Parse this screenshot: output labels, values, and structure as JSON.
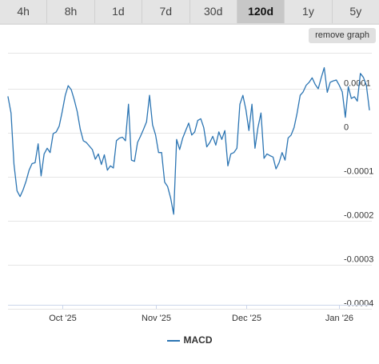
{
  "range_tabs": [
    {
      "label": "4h"
    },
    {
      "label": "8h"
    },
    {
      "label": "1d"
    },
    {
      "label": "7d"
    },
    {
      "label": "30d"
    },
    {
      "label": "120d",
      "active": true
    },
    {
      "label": "1y"
    },
    {
      "label": "5y"
    }
  ],
  "remove_graph_label": "remove graph",
  "chart_data": {
    "type": "line",
    "title": "",
    "xlabel": "",
    "ylabel": "",
    "x_start": "2025-09-13",
    "x_end": "2026-01-11",
    "x_tick_labels": [
      "Oct '25",
      "Nov '25",
      "Dec '25",
      "Jan '26"
    ],
    "x_tick_dates": [
      "2025-10-01",
      "2025-11-01",
      "2025-12-01",
      "2026-01-01"
    ],
    "ylim": [
      -0.0004,
      0.0002
    ],
    "y_ticks": [
      -0.0004,
      -0.0003,
      -0.0002,
      -0.0001,
      0,
      0.0001
    ],
    "y_tick_labels": [
      "-0.0004",
      "-0.0003",
      "-0.0002",
      "-0.0001",
      "0",
      "0.0001"
    ],
    "grid": true,
    "legend": "bottom-center",
    "line_color": "#2c75b3",
    "series": [
      {
        "name": "MACD",
        "x": [
          "2025-09-13",
          "2025-09-14",
          "2025-09-15",
          "2025-09-16",
          "2025-09-17",
          "2025-09-18",
          "2025-09-19",
          "2025-09-20",
          "2025-09-21",
          "2025-09-22",
          "2025-09-23",
          "2025-09-24",
          "2025-09-25",
          "2025-09-26",
          "2025-09-27",
          "2025-09-28",
          "2025-09-29",
          "2025-09-30",
          "2025-10-01",
          "2025-10-02",
          "2025-10-03",
          "2025-10-04",
          "2025-10-05",
          "2025-10-06",
          "2025-10-07",
          "2025-10-08",
          "2025-10-09",
          "2025-10-10",
          "2025-10-11",
          "2025-10-12",
          "2025-10-13",
          "2025-10-14",
          "2025-10-15",
          "2025-10-16",
          "2025-10-17",
          "2025-10-18",
          "2025-10-19",
          "2025-10-20",
          "2025-10-21",
          "2025-10-22",
          "2025-10-23",
          "2025-10-24",
          "2025-10-25",
          "2025-10-26",
          "2025-10-27",
          "2025-10-28",
          "2025-10-29",
          "2025-10-30",
          "2025-10-31",
          "2025-11-01",
          "2025-11-02",
          "2025-11-03",
          "2025-11-04",
          "2025-11-05",
          "2025-11-06",
          "2025-11-07",
          "2025-11-08",
          "2025-11-09",
          "2025-11-10",
          "2025-11-11",
          "2025-11-12",
          "2025-11-13",
          "2025-11-14",
          "2025-11-15",
          "2025-11-16",
          "2025-11-17",
          "2025-11-18",
          "2025-11-19",
          "2025-11-20",
          "2025-11-21",
          "2025-11-22",
          "2025-11-23",
          "2025-11-24",
          "2025-11-25",
          "2025-11-26",
          "2025-11-27",
          "2025-11-28",
          "2025-11-29",
          "2025-11-30",
          "2025-12-01",
          "2025-12-02",
          "2025-12-03",
          "2025-12-04",
          "2025-12-05",
          "2025-12-06",
          "2025-12-07",
          "2025-12-08",
          "2025-12-09",
          "2025-12-10",
          "2025-12-11",
          "2025-12-12",
          "2025-12-13",
          "2025-12-14",
          "2025-12-15",
          "2025-12-16",
          "2025-12-17",
          "2025-12-18",
          "2025-12-19",
          "2025-12-20",
          "2025-12-21",
          "2025-12-22",
          "2025-12-23",
          "2025-12-24",
          "2025-12-25",
          "2025-12-26",
          "2025-12-27",
          "2025-12-28",
          "2025-12-29",
          "2025-12-30",
          "2025-12-31",
          "2026-01-01",
          "2026-01-02",
          "2026-01-03",
          "2026-01-04",
          "2026-01-05",
          "2026-01-06",
          "2026-01-07",
          "2026-01-08",
          "2026-01-09",
          "2026-01-10",
          "2026-01-11"
        ],
        "values": [
          8.2e-05,
          4.5e-05,
          -7.2e-05,
          -0.000132,
          -0.000145,
          -0.00013,
          -0.00011,
          -8.5e-05,
          -7e-05,
          -6.8e-05,
          -2.5e-05,
          -9.8e-05,
          -4.8e-05,
          -3.5e-05,
          -4.5e-05,
          -2e-06,
          2e-06,
          1.5e-05,
          4.8e-05,
          8.5e-05,
          0.000107,
          9.8e-05,
          7.5e-05,
          4.8e-05,
          8e-06,
          -1.8e-05,
          -2.2e-05,
          -3e-05,
          -3.8e-05,
          -6e-05,
          -4.8e-05,
          -7.2e-05,
          -5e-05,
          -8.5e-05,
          -7.5e-05,
          -8e-05,
          -1.8e-05,
          -1.2e-05,
          -1e-05,
          -1.8e-05,
          6.5e-05,
          -6.2e-05,
          -6.5e-05,
          -2.2e-05,
          -8e-06,
          8e-06,
          2.5e-05,
          8.5e-05,
          1.8e-05,
          -5e-06,
          -4.5e-05,
          -4.5e-05,
          -0.000112,
          -0.000122,
          -0.000148,
          -0.000185,
          -1.5e-05,
          -3.8e-05,
          -1.2e-05,
          5e-06,
          2.2e-05,
          -5e-06,
          2e-06,
          2.8e-05,
          3.2e-05,
          1.2e-05,
          -3.2e-05,
          -2.2e-05,
          -8e-06,
          -2.8e-05,
          2e-06,
          -1.5e-05,
          5e-06,
          -7.5e-05,
          -4.8e-05,
          -4.5e-05,
          -3.5e-05,
          6.5e-05,
          8.5e-05,
          5.2e-05,
          5e-06,
          6.5e-05,
          -3.5e-05,
          1.2e-05,
          4.5e-05,
          -5.8e-05,
          -4.8e-05,
          -5.2e-05,
          -5.5e-05,
          -8.2e-05,
          -6.8e-05,
          -4.5e-05,
          -6.2e-05,
          -1.2e-05,
          -5e-06,
          1.2e-05,
          4.5e-05,
          8.5e-05,
          9.3e-05,
          0.000108,
          0.000115,
          0.000125,
          0.00011,
          0.0001,
          0.000125,
          0.000148,
          9.2e-05,
          0.000115,
          0.000118,
          0.00012,
          0.000108,
          9.3e-05,
          3.5e-05,
          0.000105,
          7.8e-05,
          8.2e-05,
          7.2e-05,
          0.000135,
          0.000126,
          0.000108,
          5.2e-05
        ]
      }
    ]
  }
}
